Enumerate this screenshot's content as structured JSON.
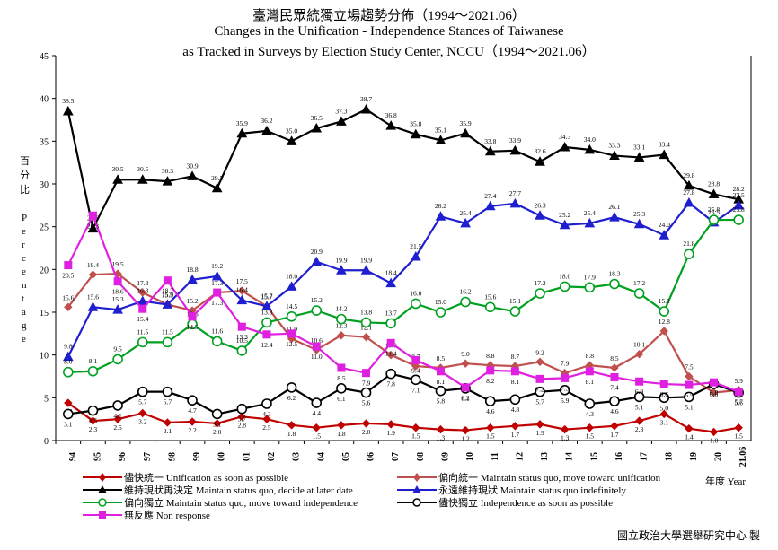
{
  "header": {
    "title_zh": "臺灣民眾統獨立場趨勢分佈（1994～2021.06）",
    "title_en1": "Changes in the Unification - Independence Stances of Taiwanese",
    "title_en2": "as Tracked in Surveys by Election Study Center, NCCU（1994～2021.06）"
  },
  "axis_text": {
    "ylabel_zh": "百分比",
    "ylabel_en": "Percentage",
    "xunit": "年度 Year"
  },
  "credit": "國立政治大學選舉研究中心 製",
  "chart_data": {
    "type": "line",
    "categories": [
      "94",
      "95",
      "96",
      "97",
      "98",
      "99",
      "00",
      "01",
      "02",
      "03",
      "04",
      "05",
      "06",
      "07",
      "08",
      "09",
      "10",
      "11",
      "12",
      "13",
      "14",
      "15",
      "16",
      "17",
      "18",
      "19",
      "20",
      "21.06"
    ],
    "ylim": [
      0,
      45
    ],
    "yticks": [
      0,
      5,
      10,
      15,
      20,
      25,
      30,
      35,
      40,
      45
    ],
    "grid": false,
    "legend_position": "bottom",
    "series": [
      {
        "name": "儘快統一 Unification as soon as possible",
        "color": "#c00000",
        "marker": "diamond",
        "values": [
          4.4,
          2.3,
          2.5,
          3.2,
          2.1,
          2.2,
          2.0,
          2.8,
          2.5,
          1.8,
          1.5,
          1.8,
          2.0,
          1.9,
          1.5,
          1.3,
          1.2,
          1.5,
          1.7,
          1.9,
          1.3,
          1.5,
          1.7,
          2.3,
          3.1,
          1.4,
          1.0,
          1.5
        ]
      },
      {
        "name": "偏向統一 Maintain status quo, move toward unification",
        "color": "#c0504d",
        "marker": "diamond",
        "values": [
          15.6,
          19.4,
          19.5,
          17.3,
          15.9,
          15.2,
          17.3,
          17.5,
          15.7,
          11.9,
          10.6,
          12.3,
          12.1,
          10.0,
          8.7,
          8.5,
          9.0,
          8.8,
          8.7,
          9.2,
          7.9,
          8.8,
          8.5,
          10.1,
          12.8,
          7.5,
          5.6,
          5.9
        ]
      },
      {
        "name": "維持現狀再決定 Maintain status quo, decide at later date",
        "color": "#000000",
        "marker": "triangle",
        "values": [
          38.5,
          24.8,
          30.5,
          30.5,
          30.3,
          30.9,
          29.5,
          35.9,
          36.2,
          35.0,
          36.5,
          37.3,
          38.7,
          36.8,
          35.8,
          35.1,
          35.9,
          33.8,
          33.9,
          32.6,
          34.3,
          34.0,
          33.3,
          33.1,
          33.4,
          29.8,
          28.8,
          28.2
        ]
      },
      {
        "name": "永遠維持現狀 Maintain status quo indefinitely",
        "color": "#1f1fd0",
        "marker": "triangle",
        "values": [
          9.8,
          15.6,
          15.3,
          16.3,
          15.9,
          18.8,
          19.2,
          16.4,
          15.7,
          18.0,
          20.9,
          19.9,
          19.9,
          18.4,
          21.5,
          26.2,
          25.4,
          27.4,
          27.7,
          26.3,
          25.2,
          25.4,
          26.1,
          25.3,
          24.0,
          27.8,
          25.5,
          27.5
        ]
      },
      {
        "name": "偏向獨立 Maintain status quo, move toward independence",
        "color": "#00a020",
        "marker": "circle",
        "values": [
          8.0,
          8.1,
          9.5,
          11.5,
          11.5,
          13.6,
          11.6,
          10.5,
          13.8,
          14.5,
          15.2,
          14.2,
          13.8,
          13.7,
          16.0,
          15.0,
          16.2,
          15.6,
          15.1,
          17.2,
          18.0,
          17.9,
          18.3,
          17.2,
          15.1,
          21.8,
          25.8,
          25.8
        ]
      },
      {
        "name": "儘快獨立 Independence as soon as possible",
        "color": "#000000",
        "marker": "circle",
        "values": [
          3.1,
          3.5,
          4.1,
          5.7,
          5.7,
          4.7,
          3.1,
          3.7,
          4.3,
          6.2,
          4.4,
          6.1,
          5.6,
          7.8,
          7.1,
          5.8,
          6.1,
          4.6,
          4.8,
          5.7,
          5.9,
          4.3,
          4.6,
          5.1,
          5.0,
          5.1,
          6.6,
          5.6
        ]
      },
      {
        "name": "無反應 Non response",
        "color": "#e020e0",
        "marker": "square",
        "values": [
          20.5,
          26.3,
          18.6,
          15.4,
          18.7,
          14.5,
          17.3,
          13.3,
          12.4,
          12.5,
          11.0,
          8.5,
          7.9,
          11.4,
          9.4,
          8.1,
          6.2,
          8.2,
          8.1,
          7.2,
          7.3,
          8.1,
          7.4,
          6.9,
          6.6,
          6.5,
          6.8,
          5.7
        ]
      }
    ]
  }
}
